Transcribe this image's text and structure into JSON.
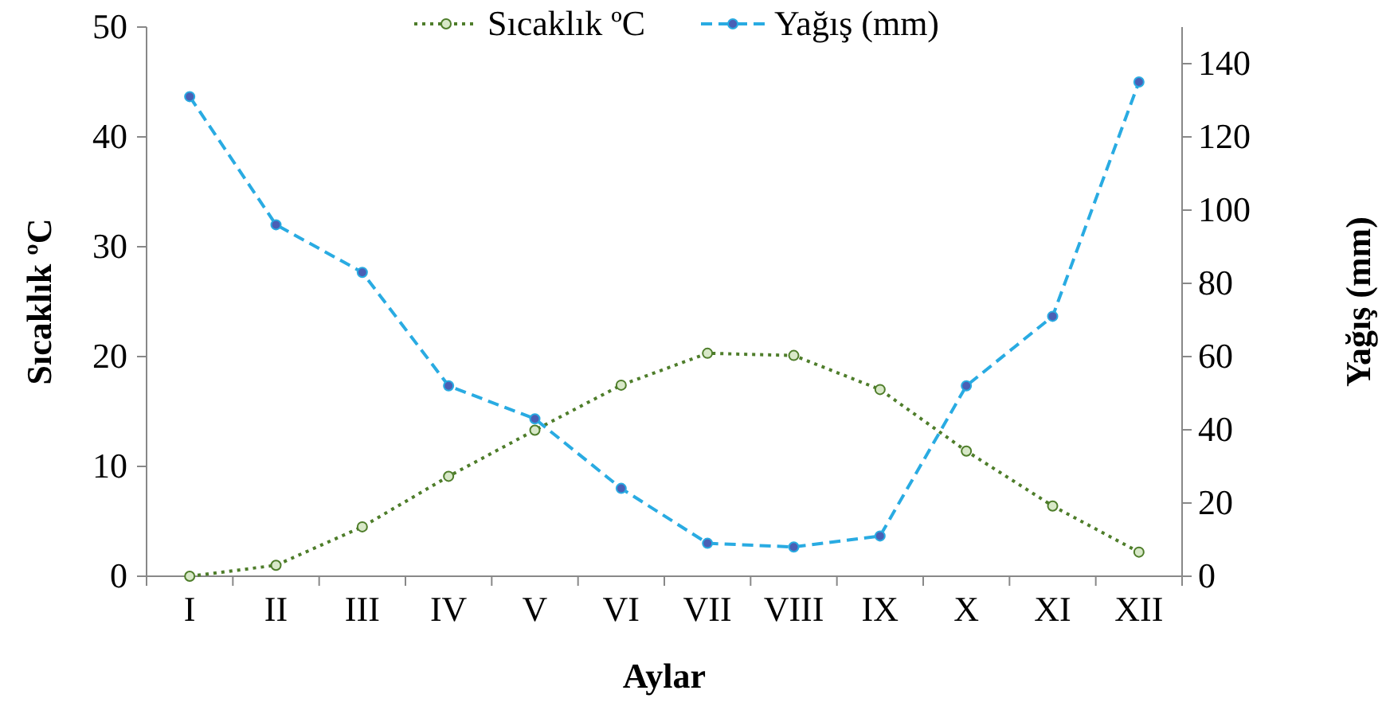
{
  "chart_data": {
    "type": "line",
    "xlabel": "Aylar",
    "ylabel": "Sıcaklık ºC",
    "y2label": "Yağış (mm)",
    "categories": [
      "I",
      "II",
      "III",
      "IV",
      "V",
      "VI",
      "VII",
      "VIII",
      "IX",
      "X",
      "XI",
      "XII"
    ],
    "series": [
      {
        "name": "Sıcaklık ºC",
        "color": "#4e7d2a",
        "line_style": "dotted",
        "marker": "circle",
        "values": [
          0,
          1.0,
          4.5,
          9.1,
          13.3,
          17.4,
          20.3,
          20.1,
          17.0,
          11.4,
          6.4,
          2.2
        ]
      },
      {
        "name": "Yağış (mm)",
        "color": "#29abe2",
        "line_style": "dashed",
        "marker": "circle",
        "axis": "y2",
        "values": [
          131,
          96,
          83,
          52,
          43,
          24,
          9,
          8,
          11,
          52,
          71,
          135
        ]
      }
    ],
    "ylim": [
      0,
      50
    ],
    "yticks": [
      0,
      10,
      20,
      30,
      40,
      50
    ],
    "y2lim": [
      0,
      150
    ],
    "y2ticks": [
      0,
      20,
      40,
      60,
      80,
      100,
      120,
      140
    ],
    "legend": "top",
    "grid": false
  }
}
